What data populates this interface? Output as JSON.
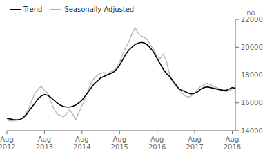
{
  "chart_data": {
    "type": "line",
    "ylabel": "no.",
    "legend": "upper left",
    "grid": false,
    "categories": [
      "Aug\n2012",
      null,
      null,
      null,
      null,
      null,
      null,
      null,
      null,
      null,
      null,
      null,
      "Aug\n2013",
      null,
      null,
      null,
      null,
      null,
      null,
      null,
      null,
      null,
      null,
      null,
      "Aug\n2014",
      null,
      null,
      null,
      null,
      null,
      null,
      null,
      null,
      null,
      null,
      null,
      "Aug\n2015",
      null,
      null,
      null,
      null,
      null,
      null,
      null,
      null,
      null,
      null,
      null,
      "Aug\n2016",
      null,
      null,
      null,
      null,
      null,
      null,
      null,
      null,
      null,
      null,
      null,
      "Aug\n2017",
      null,
      null,
      null,
      null,
      null,
      null,
      null,
      null,
      null,
      null,
      null,
      "Aug\n2018",
      null
    ],
    "ylim": [
      14000,
      22000
    ],
    "yticks": [
      14000,
      16000,
      18000,
      20000,
      22000
    ],
    "series": [
      {
        "name": "Trend",
        "color": "#000000",
        "values": [
          14900,
          14850,
          14800,
          14780,
          14800,
          14900,
          15100,
          15400,
          15700,
          16000,
          16300,
          16500,
          16600,
          16550,
          16400,
          16200,
          16000,
          15850,
          15750,
          15700,
          15700,
          15750,
          15850,
          16000,
          16200,
          16500,
          16800,
          17100,
          17400,
          17600,
          17800,
          17900,
          18000,
          18100,
          18200,
          18400,
          18700,
          19100,
          19500,
          19800,
          20000,
          20200,
          20300,
          20350,
          20300,
          20150,
          19900,
          19600,
          19200,
          18800,
          18400,
          18100,
          17900,
          17600,
          17300,
          17000,
          16900,
          16800,
          16700,
          16650,
          16700,
          16800,
          17000,
          17100,
          17150,
          17100,
          17050,
          17000,
          16950,
          16900,
          16900,
          17000,
          17100,
          17050
        ]
      },
      {
        "name": "Seasonally Adjusted",
        "color": "#b0b0b0",
        "values": [
          14800,
          14700,
          14700,
          14750,
          14800,
          14900,
          15200,
          15600,
          16200,
          16700,
          17000,
          17200,
          16900,
          16700,
          16100,
          15600,
          15200,
          15100,
          15000,
          15200,
          15500,
          15200,
          14800,
          15300,
          15800,
          16300,
          16900,
          17500,
          17800,
          18000,
          18100,
          18200,
          18000,
          18200,
          18300,
          18500,
          18900,
          19500,
          20000,
          20400,
          21000,
          21400,
          21000,
          20800,
          20700,
          20500,
          20100,
          19800,
          19300,
          19200,
          19500,
          19000,
          18000,
          17500,
          17200,
          17000,
          16700,
          16500,
          16400,
          16500,
          16700,
          17000,
          17200,
          17300,
          17400,
          17300,
          17200,
          17100,
          17000,
          16900,
          16800,
          16900,
          17000,
          17100
        ]
      }
    ]
  }
}
